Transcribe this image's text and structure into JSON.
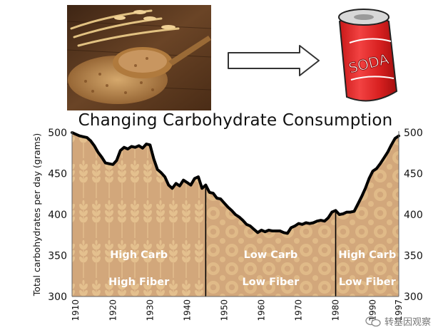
{
  "chart_data": {
    "type": "area",
    "title": "Changing Carbohydrate Consumption",
    "xlabel": "",
    "ylabel": "Total carbohydrates per day (grams)",
    "xlim": [
      1909,
      1997
    ],
    "ylim": [
      300,
      500
    ],
    "x_ticks": [
      1910,
      1920,
      1930,
      1940,
      1950,
      1960,
      1970,
      1980,
      1990,
      1997
    ],
    "x_tick_labels": [
      "1910",
      "1920",
      "1930",
      "1940",
      "1950",
      "1960",
      "1970",
      "1980",
      "1990",
      "1997"
    ],
    "y_ticks": [
      300,
      350,
      400,
      450,
      500
    ],
    "y_tick_labels": [
      "300",
      "350",
      "400",
      "450",
      "500"
    ],
    "grid": false,
    "x": [
      1909,
      1910,
      1911,
      1912,
      1913,
      1914,
      1915,
      1916,
      1917,
      1918,
      1919,
      1920,
      1921,
      1922,
      1923,
      1924,
      1925,
      1926,
      1927,
      1928,
      1929,
      1930,
      1931,
      1932,
      1933,
      1934,
      1935,
      1936,
      1937,
      1938,
      1939,
      1940,
      1941,
      1942,
      1943,
      1944,
      1945,
      1946,
      1947,
      1948,
      1949,
      1950,
      1951,
      1952,
      1953,
      1954,
      1955,
      1956,
      1957,
      1958,
      1959,
      1960,
      1961,
      1962,
      1963,
      1964,
      1965,
      1966,
      1967,
      1968,
      1969,
      1970,
      1971,
      1972,
      1973,
      1974,
      1975,
      1976,
      1977,
      1978,
      1979,
      1980,
      1981,
      1982,
      1983,
      1984,
      1985,
      1986,
      1987,
      1988,
      1989,
      1990,
      1991,
      1992,
      1993,
      1994,
      1995,
      1996,
      1997
    ],
    "values": [
      500,
      498,
      496,
      495,
      494,
      490,
      484,
      476,
      470,
      463,
      462,
      461,
      466,
      478,
      482,
      480,
      483,
      482,
      484,
      481,
      486,
      485,
      468,
      455,
      451,
      446,
      436,
      432,
      438,
      435,
      442,
      439,
      436,
      444,
      446,
      432,
      436,
      427,
      426,
      420,
      419,
      414,
      409,
      405,
      400,
      397,
      393,
      388,
      386,
      382,
      378,
      381,
      379,
      381,
      380,
      380,
      380,
      378,
      377,
      384,
      386,
      389,
      388,
      390,
      389,
      390,
      392,
      393,
      392,
      396,
      403,
      405,
      400,
      401,
      403,
      403,
      404,
      413,
      422,
      432,
      444,
      453,
      456,
      462,
      469,
      476,
      485,
      493,
      496
    ],
    "dividers": [
      1945,
      1980
    ],
    "regions": [
      {
        "line1": "High Carb",
        "line2": "High Fiber",
        "x_start": 1909,
        "x_end": 1945,
        "pattern": "wheat"
      },
      {
        "line1": "Low Carb",
        "line2": "Low Fiber",
        "x_start": 1945,
        "x_end": 1980,
        "pattern": "circles"
      },
      {
        "line1": "High Carb",
        "line2": "Low Fiber",
        "x_start": 1980,
        "x_end": 1997,
        "pattern": "circles"
      }
    ],
    "colors": {
      "fill": "#d2a77b",
      "pattern": "#e4c08e",
      "line": "#000000",
      "text": "#ffffff"
    }
  },
  "illustration": {
    "left_image": "wheat-grain-spoon-photo",
    "arrow": "right-arrow-icon",
    "right_image": "soda-can-drawing",
    "soda_label": "SODA"
  },
  "watermark": {
    "icon": "chat-bubble-icon",
    "text": "转基因观察"
  }
}
